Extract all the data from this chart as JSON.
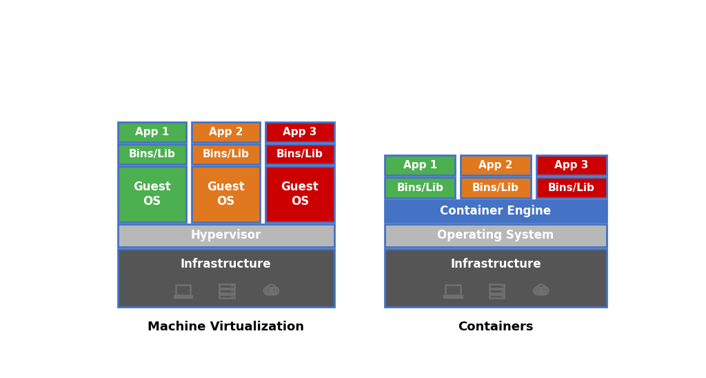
{
  "bg_color": "#ffffff",
  "border_color": "#4472c4",
  "colors": {
    "green": "#4CAF50",
    "orange": "#E07820",
    "red": "#CC0000",
    "blue": "#4472c4",
    "lightgray": "#B8B8B8",
    "darkgray": "#555555",
    "white": "#ffffff"
  },
  "vm_title": "Machine Virtualization",
  "container_title": "Containers",
  "vm_cols": [
    {
      "color": "#4CAF50",
      "label_app": "App 1",
      "label_bin": "Bins/Lib",
      "label_os": "Guest\nOS"
    },
    {
      "color": "#E07820",
      "label_app": "App 2",
      "label_bin": "Bins/Lib",
      "label_os": "Guest\nOS"
    },
    {
      "color": "#CC0000",
      "label_app": "App 3",
      "label_bin": "Bins/Lib",
      "label_os": "Guest\nOS"
    }
  ],
  "container_cols": [
    {
      "color": "#4CAF50",
      "label_app": "App 1",
      "label_bin": "Bins/Lib"
    },
    {
      "color": "#E07820",
      "label_app": "App 2",
      "label_bin": "Bins/Lib"
    },
    {
      "color": "#CC0000",
      "label_app": "App 3",
      "label_bin": "Bins/Lib"
    }
  ],
  "hypervisor_label": "Hypervisor",
  "os_label": "Operating System",
  "container_engine_label": "Container Engine",
  "infra_label": "Infrastructure"
}
